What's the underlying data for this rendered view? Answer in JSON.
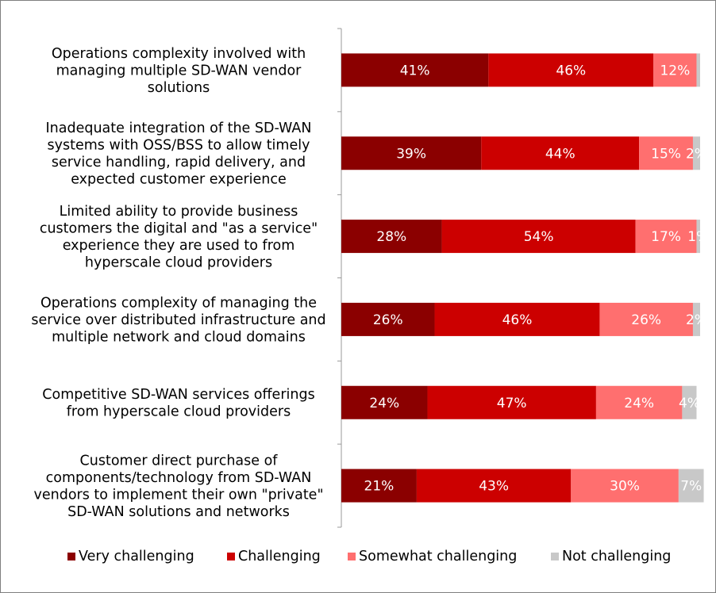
{
  "chart_data": {
    "type": "bar",
    "orientation": "horizontal",
    "stacked": true,
    "categories": [
      [
        "Operations complexity involved with",
        "managing multiple SD-WAN vendor",
        "solutions"
      ],
      [
        "Inadequate integration of the SD-WAN",
        "systems with OSS/BSS to allow timely",
        "service handling, rapid delivery, and",
        "expected customer experience"
      ],
      [
        "Limited ability to provide business",
        "customers the digital and \"as a service\"",
        "experience they are used to from",
        "hyperscale cloud providers"
      ],
      [
        "Operations complexity of managing the",
        "service over distributed infrastructure and",
        "multiple network and cloud domains"
      ],
      [
        "Competitive SD-WAN services offerings",
        "from hyperscale cloud providers"
      ],
      [
        "Customer direct purchase of",
        "components/technology from SD-WAN",
        "vendors to implement their own \"private\"",
        "SD-WAN solutions and networks"
      ]
    ],
    "series": [
      {
        "name": "Very challenging",
        "color": "#8b0000",
        "values": [
          41,
          39,
          28,
          26,
          24,
          21
        ]
      },
      {
        "name": "Challenging",
        "color": "#cc0000",
        "values": [
          46,
          44,
          54,
          46,
          47,
          43
        ]
      },
      {
        "name": "Somewhat challenging",
        "color": "#ff6f6f",
        "values": [
          12,
          15,
          17,
          26,
          24,
          30
        ]
      },
      {
        "name": "Not challenging",
        "color": "#c8c8c8",
        "values": [
          1,
          2,
          1,
          2,
          4,
          7
        ]
      }
    ],
    "data_labels": [
      [
        "41%",
        "46%",
        "12%",
        ""
      ],
      [
        "39%",
        "44%",
        "15%",
        "2%"
      ],
      [
        "28%",
        "54%",
        "17%",
        "1%"
      ],
      [
        "26%",
        "46%",
        "26%",
        "2%"
      ],
      [
        "24%",
        "47%",
        "24%",
        "4%"
      ],
      [
        "21%",
        "43%",
        "30%",
        "7%"
      ]
    ],
    "xlim": [
      0,
      100
    ],
    "legend_position": "bottom",
    "grid": false
  }
}
